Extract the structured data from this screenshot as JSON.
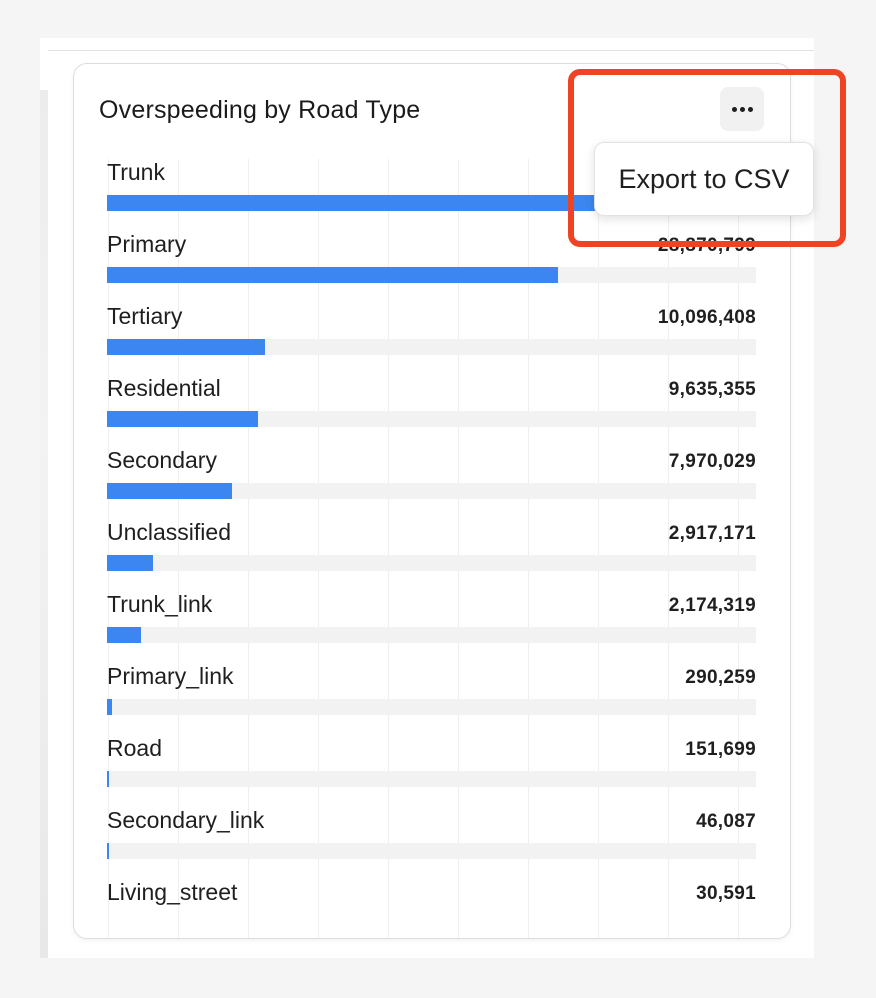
{
  "card": {
    "title": "Overspeeding by Road Type",
    "menu_icon": "more-horizontal-icon"
  },
  "dropdown": {
    "items": [
      {
        "label": "Export to CSV"
      }
    ]
  },
  "colors": {
    "bar": "#3b86f0",
    "track": "#f2f2f2",
    "highlight": "#ef4423"
  },
  "chart_data": {
    "type": "bar",
    "orientation": "horizontal",
    "title": "Overspeeding by Road Type",
    "categories": [
      "Trunk",
      "Primary",
      "Tertiary",
      "Residential",
      "Secondary",
      "Unclassified",
      "Trunk_link",
      "Primary_link",
      "Road",
      "Secondary_link",
      "Living_street"
    ],
    "values": [
      41500000,
      28870799,
      10096408,
      9635355,
      7970029,
      2917171,
      2174319,
      290259,
      151699,
      46087,
      30591
    ],
    "value_labels": [
      "",
      "28,870,799",
      "10,096,408",
      "9,635,355",
      "7,970,029",
      "2,917,171",
      "2,174,319",
      "290,259",
      "151,699",
      "46,087",
      "30,591"
    ],
    "xlim": [
      0,
      41500000
    ],
    "grid": true
  }
}
